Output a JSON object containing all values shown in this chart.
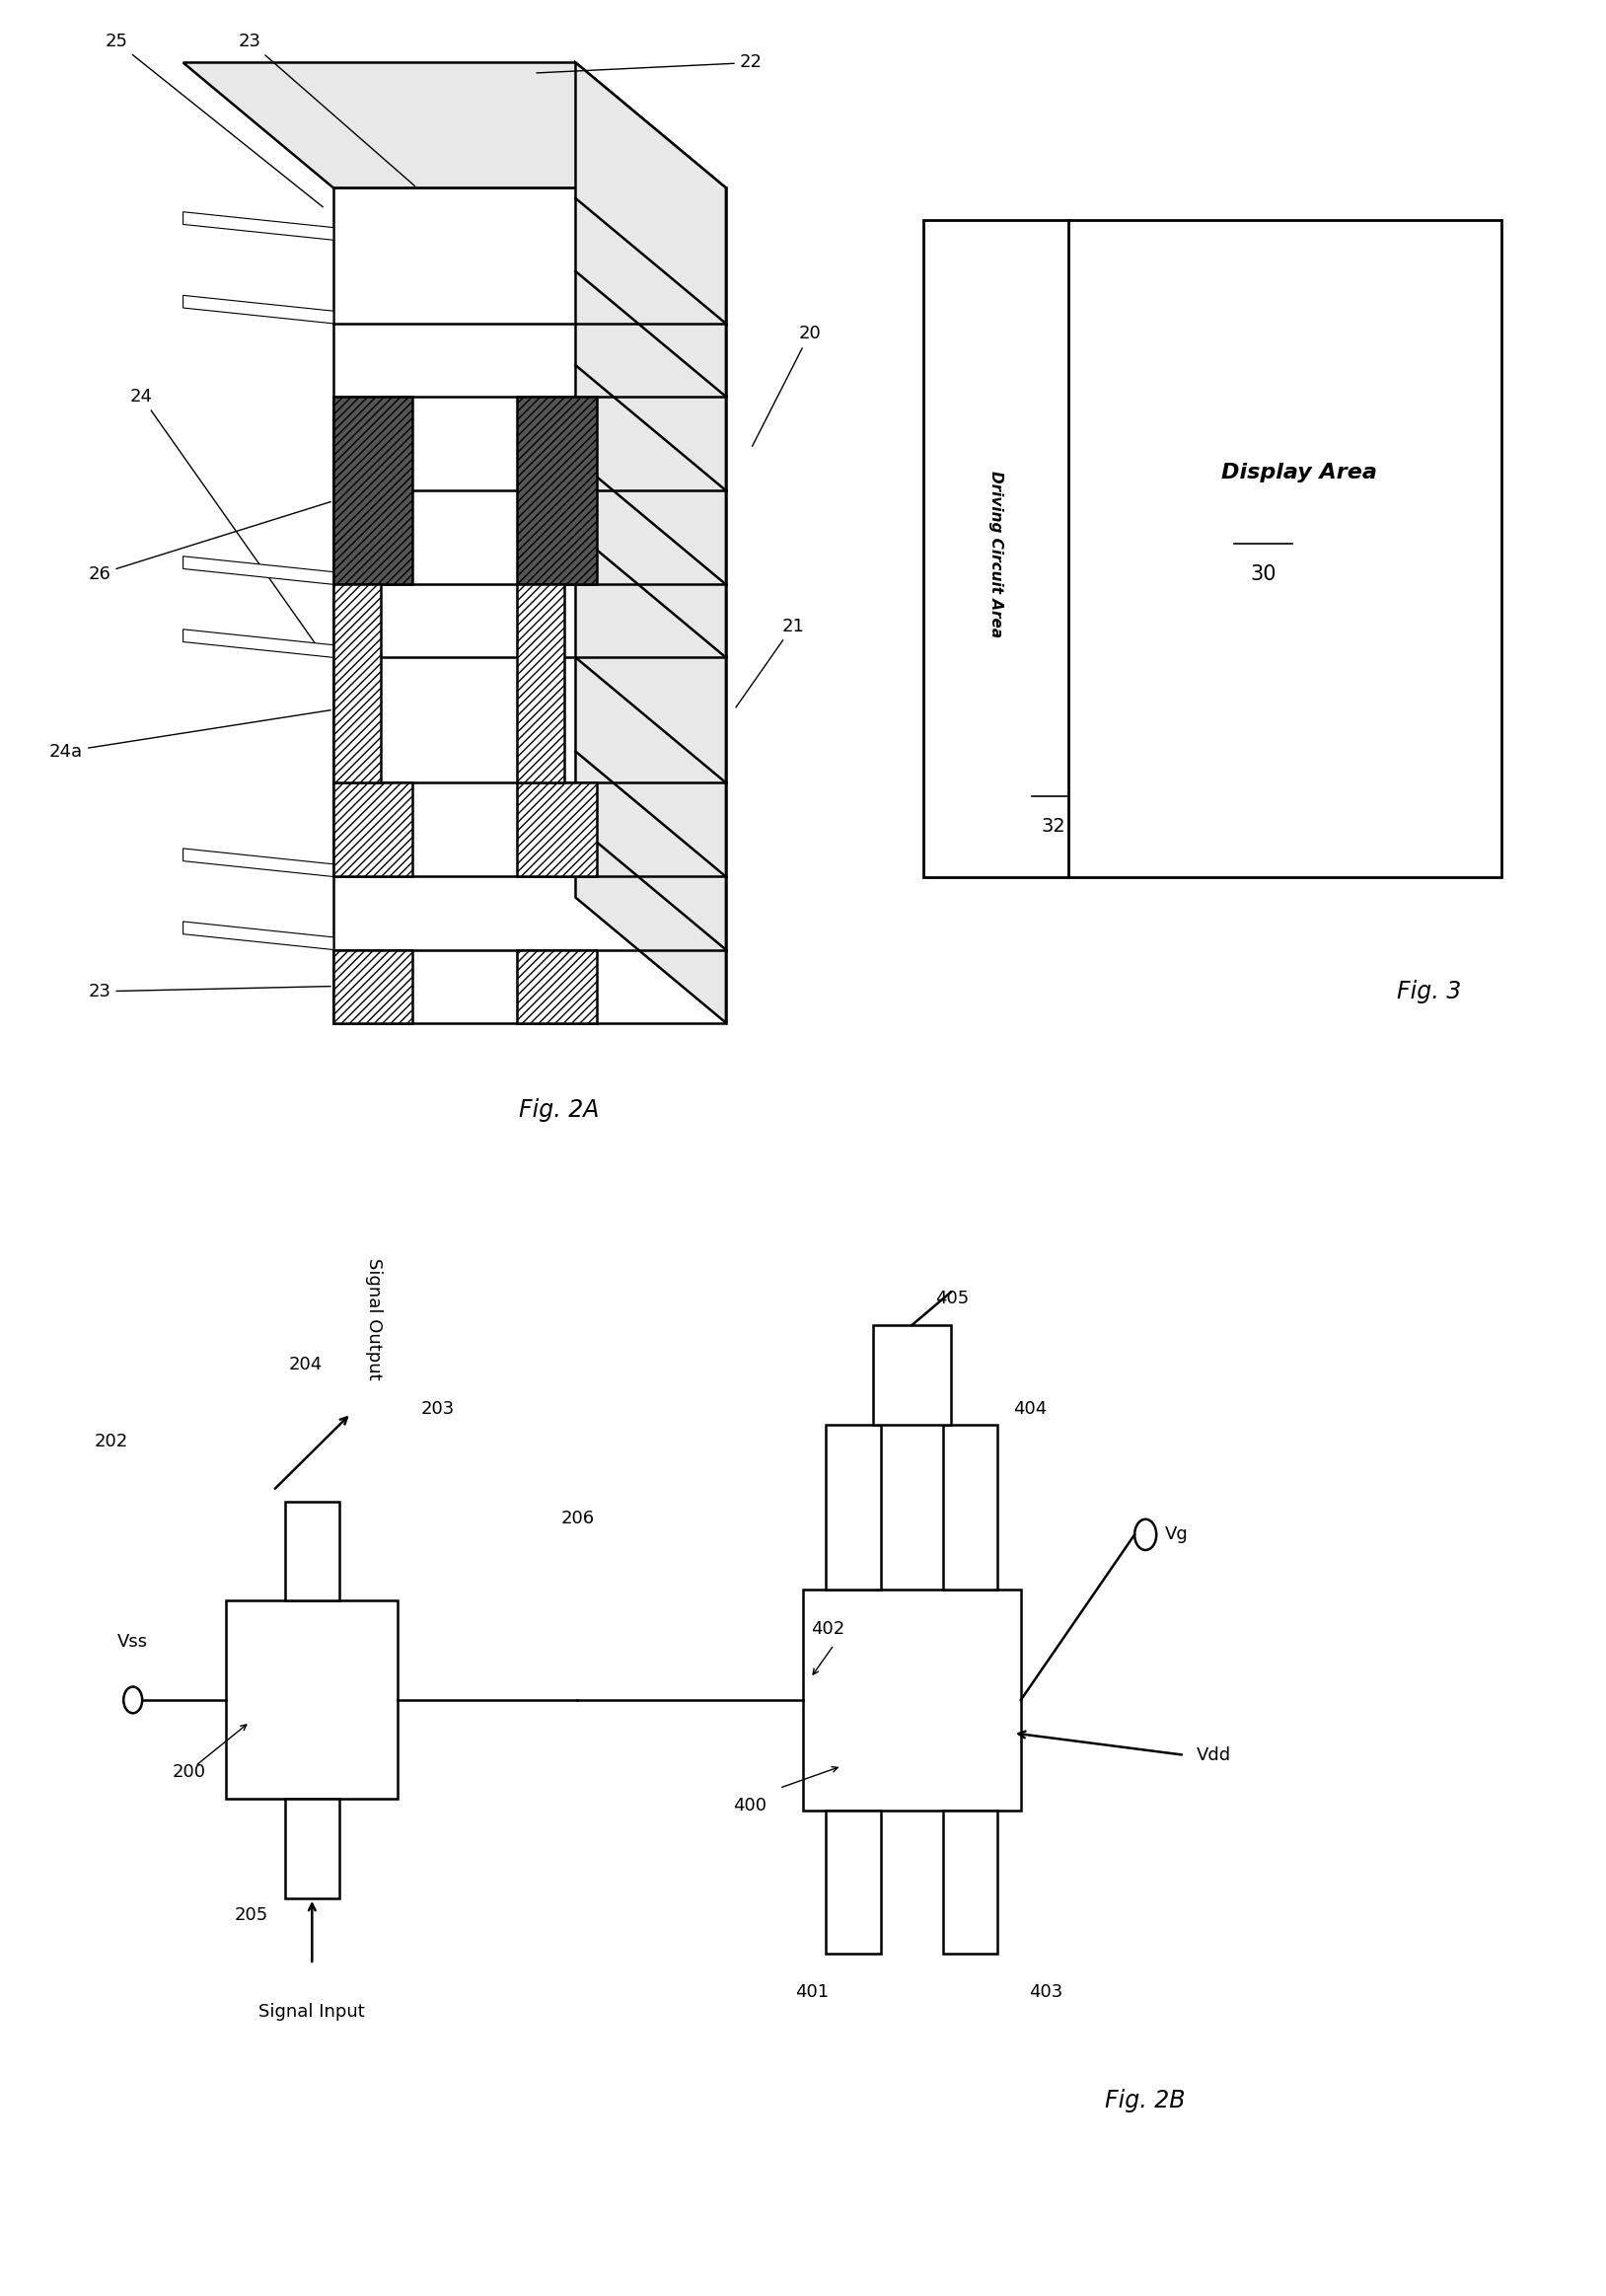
{
  "bg_color": "#ffffff",
  "lc": "#000000",
  "lw": 1.8,
  "fig_width": 16.28,
  "fig_height": 23.27,
  "fig2a_label": "Fig. 2A",
  "fig2b_label": "Fig. 2B",
  "fig3_label": "Fig. 3",
  "label_fs": 13,
  "fig_label_fs": 17
}
